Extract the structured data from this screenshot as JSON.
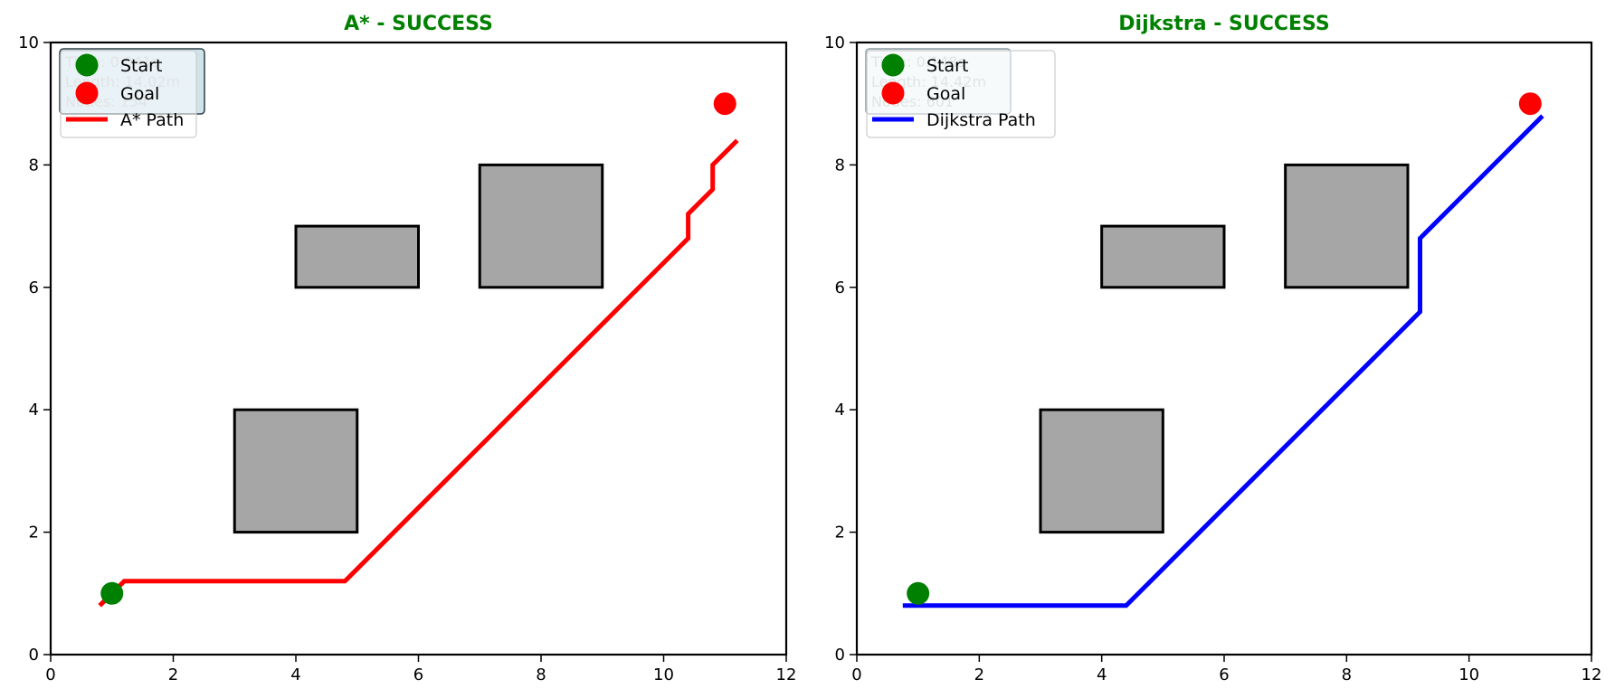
{
  "chart_data": [
    {
      "type": "scatter",
      "title": "A* - SUCCESS",
      "title_color": "#008000",
      "xlim": [
        0,
        12
      ],
      "ylim": [
        0,
        10
      ],
      "xticks": [
        0,
        2,
        4,
        6,
        8,
        10,
        12
      ],
      "yticks": [
        0,
        2,
        4,
        6,
        8,
        10
      ],
      "grid": false,
      "obstacles": [
        {
          "x": 3,
          "y": 2,
          "w": 2,
          "h": 2
        },
        {
          "x": 4,
          "y": 6,
          "w": 2,
          "h": 1
        },
        {
          "x": 7,
          "y": 6,
          "w": 2,
          "h": 2
        }
      ],
      "start": {
        "x": 1,
        "y": 1,
        "label": "Start",
        "color": "#008000"
      },
      "goal": {
        "x": 11,
        "y": 9,
        "label": "Goal",
        "color": "#ff0000"
      },
      "path": {
        "name": "A* Path",
        "color": "#ff0000",
        "points": [
          [
            0.8,
            0.8
          ],
          [
            1.2,
            1.2
          ],
          [
            4.8,
            1.2
          ],
          [
            10.4,
            6.8
          ],
          [
            10.4,
            7.2
          ],
          [
            10.8,
            7.6
          ],
          [
            10.8,
            8.0
          ],
          [
            11.2,
            8.4
          ]
        ]
      },
      "stats_box": {
        "lines": [
          "Time: 0.041s",
          "Length: 14.02m",
          "Nodes: 154"
        ],
        "fill": "#cfe3ea",
        "edge": "#2f3f46"
      },
      "legend_position": "upper-left"
    },
    {
      "type": "scatter",
      "title": "Dijkstra - SUCCESS",
      "title_color": "#008000",
      "xlim": [
        0,
        12
      ],
      "ylim": [
        0,
        10
      ],
      "xticks": [
        0,
        2,
        4,
        6,
        8,
        10,
        12
      ],
      "yticks": [
        0,
        2,
        4,
        6,
        8,
        10
      ],
      "grid": false,
      "obstacles": [
        {
          "x": 3,
          "y": 2,
          "w": 2,
          "h": 2
        },
        {
          "x": 4,
          "y": 6,
          "w": 2,
          "h": 1
        },
        {
          "x": 7,
          "y": 6,
          "w": 2,
          "h": 2
        }
      ],
      "start": {
        "x": 1,
        "y": 1,
        "label": "Start",
        "color": "#008000"
      },
      "goal": {
        "x": 11,
        "y": 9,
        "label": "Goal",
        "color": "#ff0000"
      },
      "path": {
        "name": "Dijkstra Path",
        "color": "#0000ff",
        "points": [
          [
            0.75,
            0.8
          ],
          [
            4.4,
            0.8
          ],
          [
            9.2,
            5.6
          ],
          [
            9.2,
            6.8
          ],
          [
            11.2,
            8.8
          ]
        ]
      },
      "stats_box": {
        "lines": [
          "Time: 0.148s",
          "Length: 14.42m",
          "Nodes: 601"
        ],
        "fill": "#edf3f6",
        "edge": "#8a9aa2"
      },
      "legend_position": "upper-left"
    }
  ]
}
